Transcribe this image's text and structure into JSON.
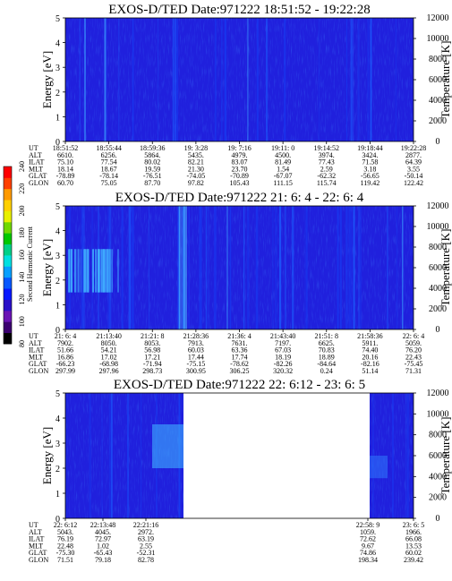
{
  "figure": {
    "colorbar": {
      "label": "Second Harmonic Current",
      "ticks": [
        "80",
        "100",
        "120",
        "140",
        "160",
        "180",
        "200",
        "220",
        "240"
      ],
      "colors": [
        "#000000",
        "#3b0070",
        "#6a14b4",
        "#2a10c8",
        "#0818ff",
        "#0858ff",
        "#08a0ff",
        "#00e0e0",
        "#00d088",
        "#00c800",
        "#70d800",
        "#e8f000",
        "#ffd000",
        "#ff9a00",
        "#ff4000",
        "#ff0000"
      ]
    },
    "panel_color": "#2020dd"
  },
  "chart_data": [
    {
      "type": "heatmap",
      "title": "EXOS-D/TED   Date:971222  18:51:52 - 19:22:28",
      "ylabel": "Energy [eV]",
      "y2label": "Temperature [K]",
      "ylim": [
        0,
        5
      ],
      "y2lim": [
        0,
        12000
      ],
      "yticks": [
        "0",
        "1",
        "2",
        "3",
        "4",
        "5"
      ],
      "y2ticks": [
        "0",
        "2000",
        "4000",
        "6000",
        "8000",
        "10000",
        "12000"
      ],
      "ephemeris": {
        "labels": [
          "UT",
          "ALT",
          "ILAT",
          "MLT",
          "GLAT",
          "GLON"
        ],
        "columns": [
          [
            "18:51:52",
            "6610.",
            "75.10",
            "18.14",
            "-78.89",
            "60.70"
          ],
          [
            "18:55:44",
            "6256.",
            "77.54",
            "18.67",
            "-78.14",
            "75.05"
          ],
          [
            "18:59:36",
            "5864.",
            "80.02",
            "19.59",
            "-76.51",
            "87.70"
          ],
          [
            "19: 3:28",
            "5435.",
            "82.21",
            "21.30",
            "-74.05",
            "97.82"
          ],
          [
            "19: 7:16",
            "4979.",
            "83.07",
            "23.70",
            "-70.89",
            "105.43"
          ],
          [
            "19:11: 0",
            "4500.",
            "81.49",
            "1.54",
            "-67.07",
            "111.15"
          ],
          [
            "19:14:52",
            "3974.",
            "77.43",
            "2.59",
            "-62.32",
            "115.74"
          ],
          [
            "19:18:44",
            "3424.",
            "71.58",
            "3.18",
            "-56.65",
            "119.42"
          ],
          [
            "19:22:28",
            "2877.",
            "64.39",
            "3.55",
            "-50.14",
            "122.42"
          ]
        ]
      }
    },
    {
      "type": "heatmap",
      "title": "EXOS-D/TED   Date:971222  21: 6: 4 - 22: 6: 4",
      "ylabel": "Energy [eV]",
      "y2label": "Temperature [K]",
      "ylim": [
        0,
        5
      ],
      "y2lim": [
        0,
        12000
      ],
      "yticks": [
        "0",
        "1",
        "2",
        "3",
        "4",
        "5"
      ],
      "y2ticks": [
        "0",
        "2000",
        "4000",
        "6000",
        "8000",
        "10000",
        "12000"
      ],
      "ephemeris": {
        "labels": [
          "UT",
          "ALT",
          "ILAT",
          "MLT",
          "GLAT",
          "GLON"
        ],
        "columns": [
          [
            "21: 6: 4",
            "7902.",
            "51.66",
            "16.86",
            "-66.23",
            "297.99"
          ],
          [
            "21:13:40",
            "8050.",
            "54.21",
            "17.02",
            "-68.98",
            "297.96"
          ],
          [
            "21:21: 8",
            "8053.",
            "56.98",
            "17.21",
            "-71.94",
            "298.73"
          ],
          [
            "21:28:36",
            "7913.",
            "60.03",
            "17.44",
            "-75.15",
            "300.95"
          ],
          [
            "21:36: 4",
            "7631.",
            "63.36",
            "17.74",
            "-78.62",
            "306.25"
          ],
          [
            "21:43:40",
            "7197.",
            "67.03",
            "18.19",
            "-82.26",
            "320.32"
          ],
          [
            "21:51: 8",
            "6625.",
            "70.83",
            "18.89",
            "-84.64",
            "0.24"
          ],
          [
            "21:58:36",
            "5911.",
            "74.40",
            "20.16",
            "-82.16",
            "51.14"
          ],
          [
            "22: 6: 4",
            "5059.",
            "76.20",
            "22.43",
            "-75.45",
            "71.31"
          ]
        ]
      }
    },
    {
      "type": "heatmap",
      "title": "EXOS-D/TED   Date:971222  22: 6:12 - 23: 6: 5",
      "ylabel": "Energy [eV]",
      "y2label": "Temperature [K]",
      "ylim": [
        0,
        5
      ],
      "y2lim": [
        0,
        12000
      ],
      "yticks": [
        "0",
        "1",
        "2",
        "3",
        "4",
        "5"
      ],
      "y2ticks": [
        "0",
        "2000",
        "4000",
        "6000",
        "8000",
        "10000",
        "12000"
      ],
      "data_gap": true,
      "ephemeris": {
        "labels": [
          "UT",
          "ALT",
          "ILAT",
          "MLT",
          "GLAT",
          "GLON"
        ],
        "columns": [
          [
            "22: 6:12",
            "5043.",
            "76.19",
            "22.48",
            "-75.30",
            "71.51"
          ],
          [
            "22:13:48",
            "4045.",
            "72.97",
            "1.02",
            "-65.43",
            "79.18"
          ],
          [
            "22:21:16",
            "2972.",
            "63.19",
            "2.55",
            "-52.31",
            "82.78"
          ],
          [
            "22:58: 9",
            "1059.",
            "72.62",
            "9.67",
            "74.86",
            "198.34"
          ],
          [
            "23: 6: 5",
            "1966.",
            "66.08",
            "13.53",
            "60.02",
            "239.42"
          ]
        ]
      }
    }
  ]
}
